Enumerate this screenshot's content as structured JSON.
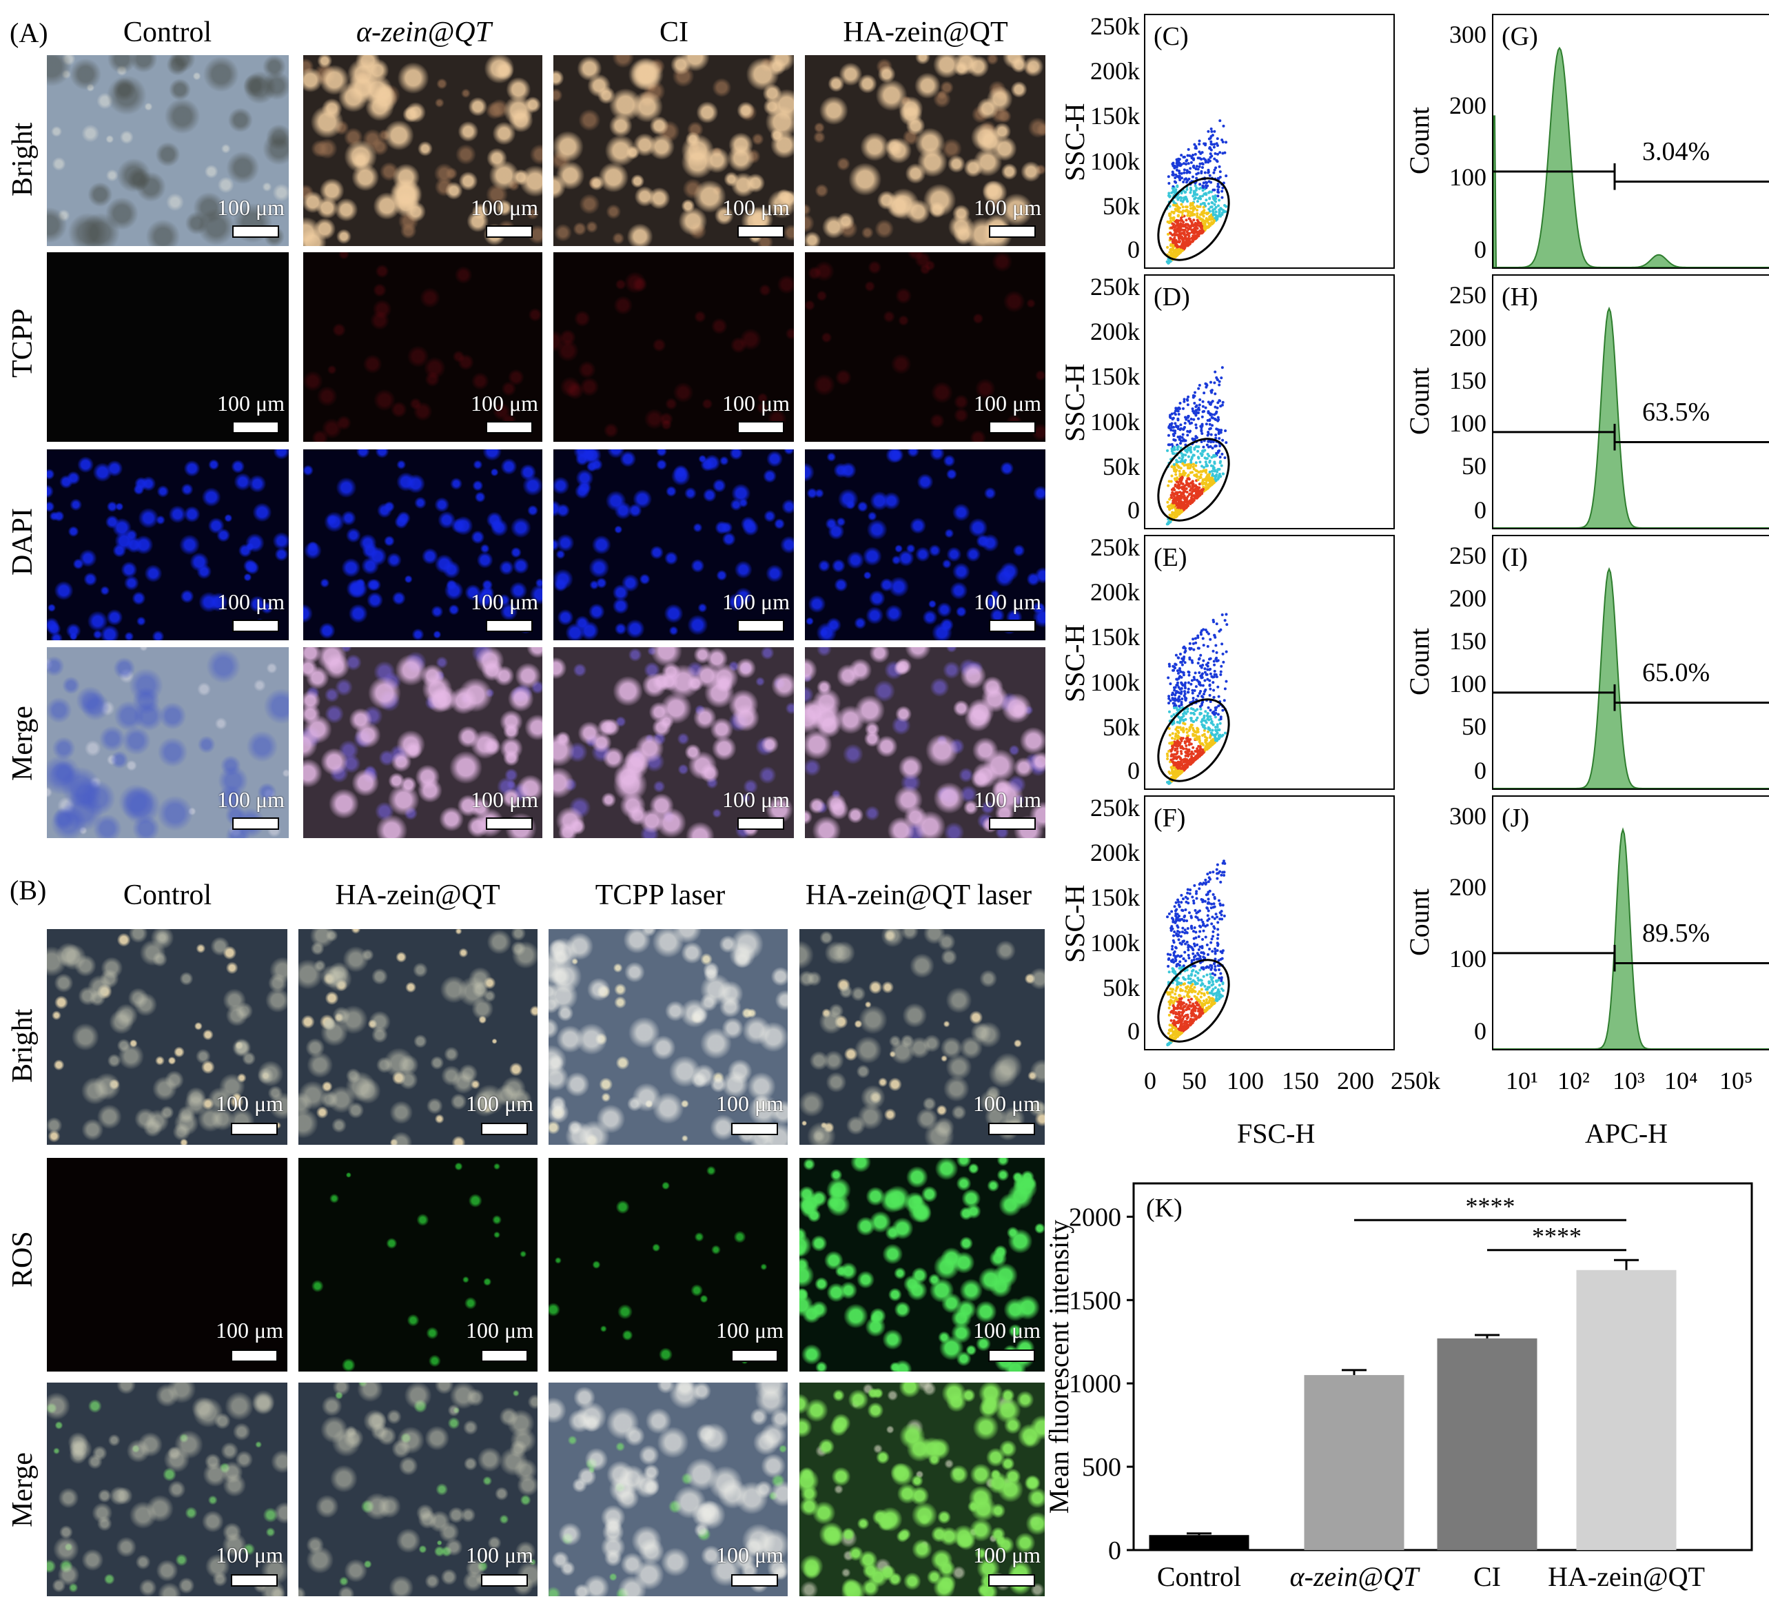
{
  "panelA": {
    "label": "(A)",
    "columns": [
      "Control",
      "α-zein@QT",
      "CI",
      "HA-zein@QT"
    ],
    "rows": [
      "Bright",
      "TCPP",
      "DAPI",
      "Merge"
    ],
    "scale_text": "100 μm"
  },
  "panelB": {
    "label": "(B)",
    "columns": [
      "Control",
      "HA-zein@QT",
      "TCPP laser",
      "HA-zein@QT laser"
    ],
    "rows": [
      "Bright",
      "ROS",
      "Merge"
    ],
    "scale_text": "100 μm"
  },
  "scatter": {
    "labels": [
      "(C)",
      "(D)",
      "(E)",
      "(F)"
    ],
    "y_ticks": [
      "250k",
      "200k",
      "150k",
      "100k",
      "50k",
      "0"
    ],
    "y_label": "SSC-H",
    "x_ticks": [
      "0",
      "50",
      "100",
      "150",
      "200",
      "250k"
    ],
    "x_label": "FSC-H"
  },
  "histograms": {
    "labels": [
      "(G)",
      "(H)",
      "(I)",
      "(J)"
    ],
    "y_label": "Count",
    "y_ticks": [
      [
        "300",
        "200",
        "100",
        "0"
      ],
      [
        "250",
        "200",
        "150",
        "100",
        "50",
        "0"
      ],
      [
        "250",
        "200",
        "150",
        "100",
        "50",
        "0"
      ],
      [
        "300",
        "200",
        "100",
        "0"
      ]
    ],
    "percents": [
      "3.04%",
      "63.5%",
      "65.0%",
      "89.5%"
    ],
    "x_ticks": [
      "10¹",
      "10²",
      "10³",
      "10⁴",
      "10⁵"
    ],
    "x_label": "APC-H"
  },
  "chart_data": {
    "type": "bar",
    "panel_label": "(K)",
    "categories": [
      "Control",
      "α-zein@QT",
      "CI",
      "HA-zein@QT"
    ],
    "values": [
      90,
      1050,
      1270,
      1680
    ],
    "errors": [
      10,
      30,
      20,
      60
    ],
    "ylabel": "Mean fluorescent intensity",
    "ylim": [
      0,
      2200
    ],
    "y_ticks": [
      "0",
      "500",
      "1000",
      "1500",
      "2000"
    ],
    "bar_colors": [
      "#000000",
      "#a3a3a3",
      "#7a7a7a",
      "#d2d2d2"
    ],
    "significance": [
      {
        "from": "α-zein@QT",
        "to": "HA-zein@QT",
        "text": "****"
      },
      {
        "from": "CI",
        "to": "HA-zein@QT",
        "text": "****"
      }
    ]
  }
}
